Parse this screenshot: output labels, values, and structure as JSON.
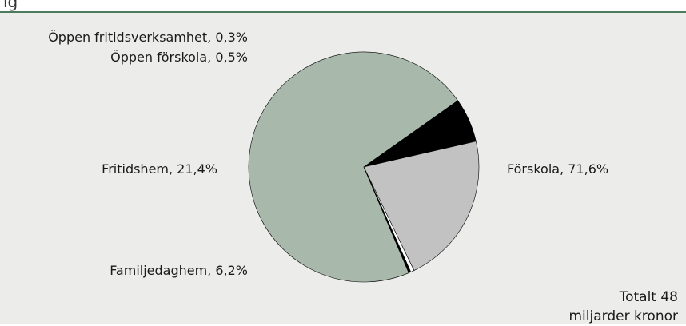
{
  "header": {
    "partial_title": "ig"
  },
  "chart_data": {
    "type": "pie",
    "title": "",
    "slices": [
      {
        "label": "Förskola, 71,6%",
        "name": "Förskola",
        "value": 71.6,
        "color": "#a8b8ab"
      },
      {
        "label": "Familjedaghem, 6,2%",
        "name": "Familjedaghem",
        "value": 6.2,
        "color": "#000000"
      },
      {
        "label": "Fritidshem, 21,4%",
        "name": "Fritidshem",
        "value": 21.4,
        "color": "#c2c2c2"
      },
      {
        "label": "Öppen förskola, 0,5%",
        "name": "Öppen förskola",
        "value": 0.5,
        "color": "#ffffff"
      },
      {
        "label": "Öppen fritidsverksamhet, 0,3%",
        "name": "Öppen fritidsverksamhet",
        "value": 0.3,
        "color": "#000000"
      }
    ],
    "total_note": {
      "line1": "Totalt 48",
      "line2": "miljarder kronor"
    }
  }
}
